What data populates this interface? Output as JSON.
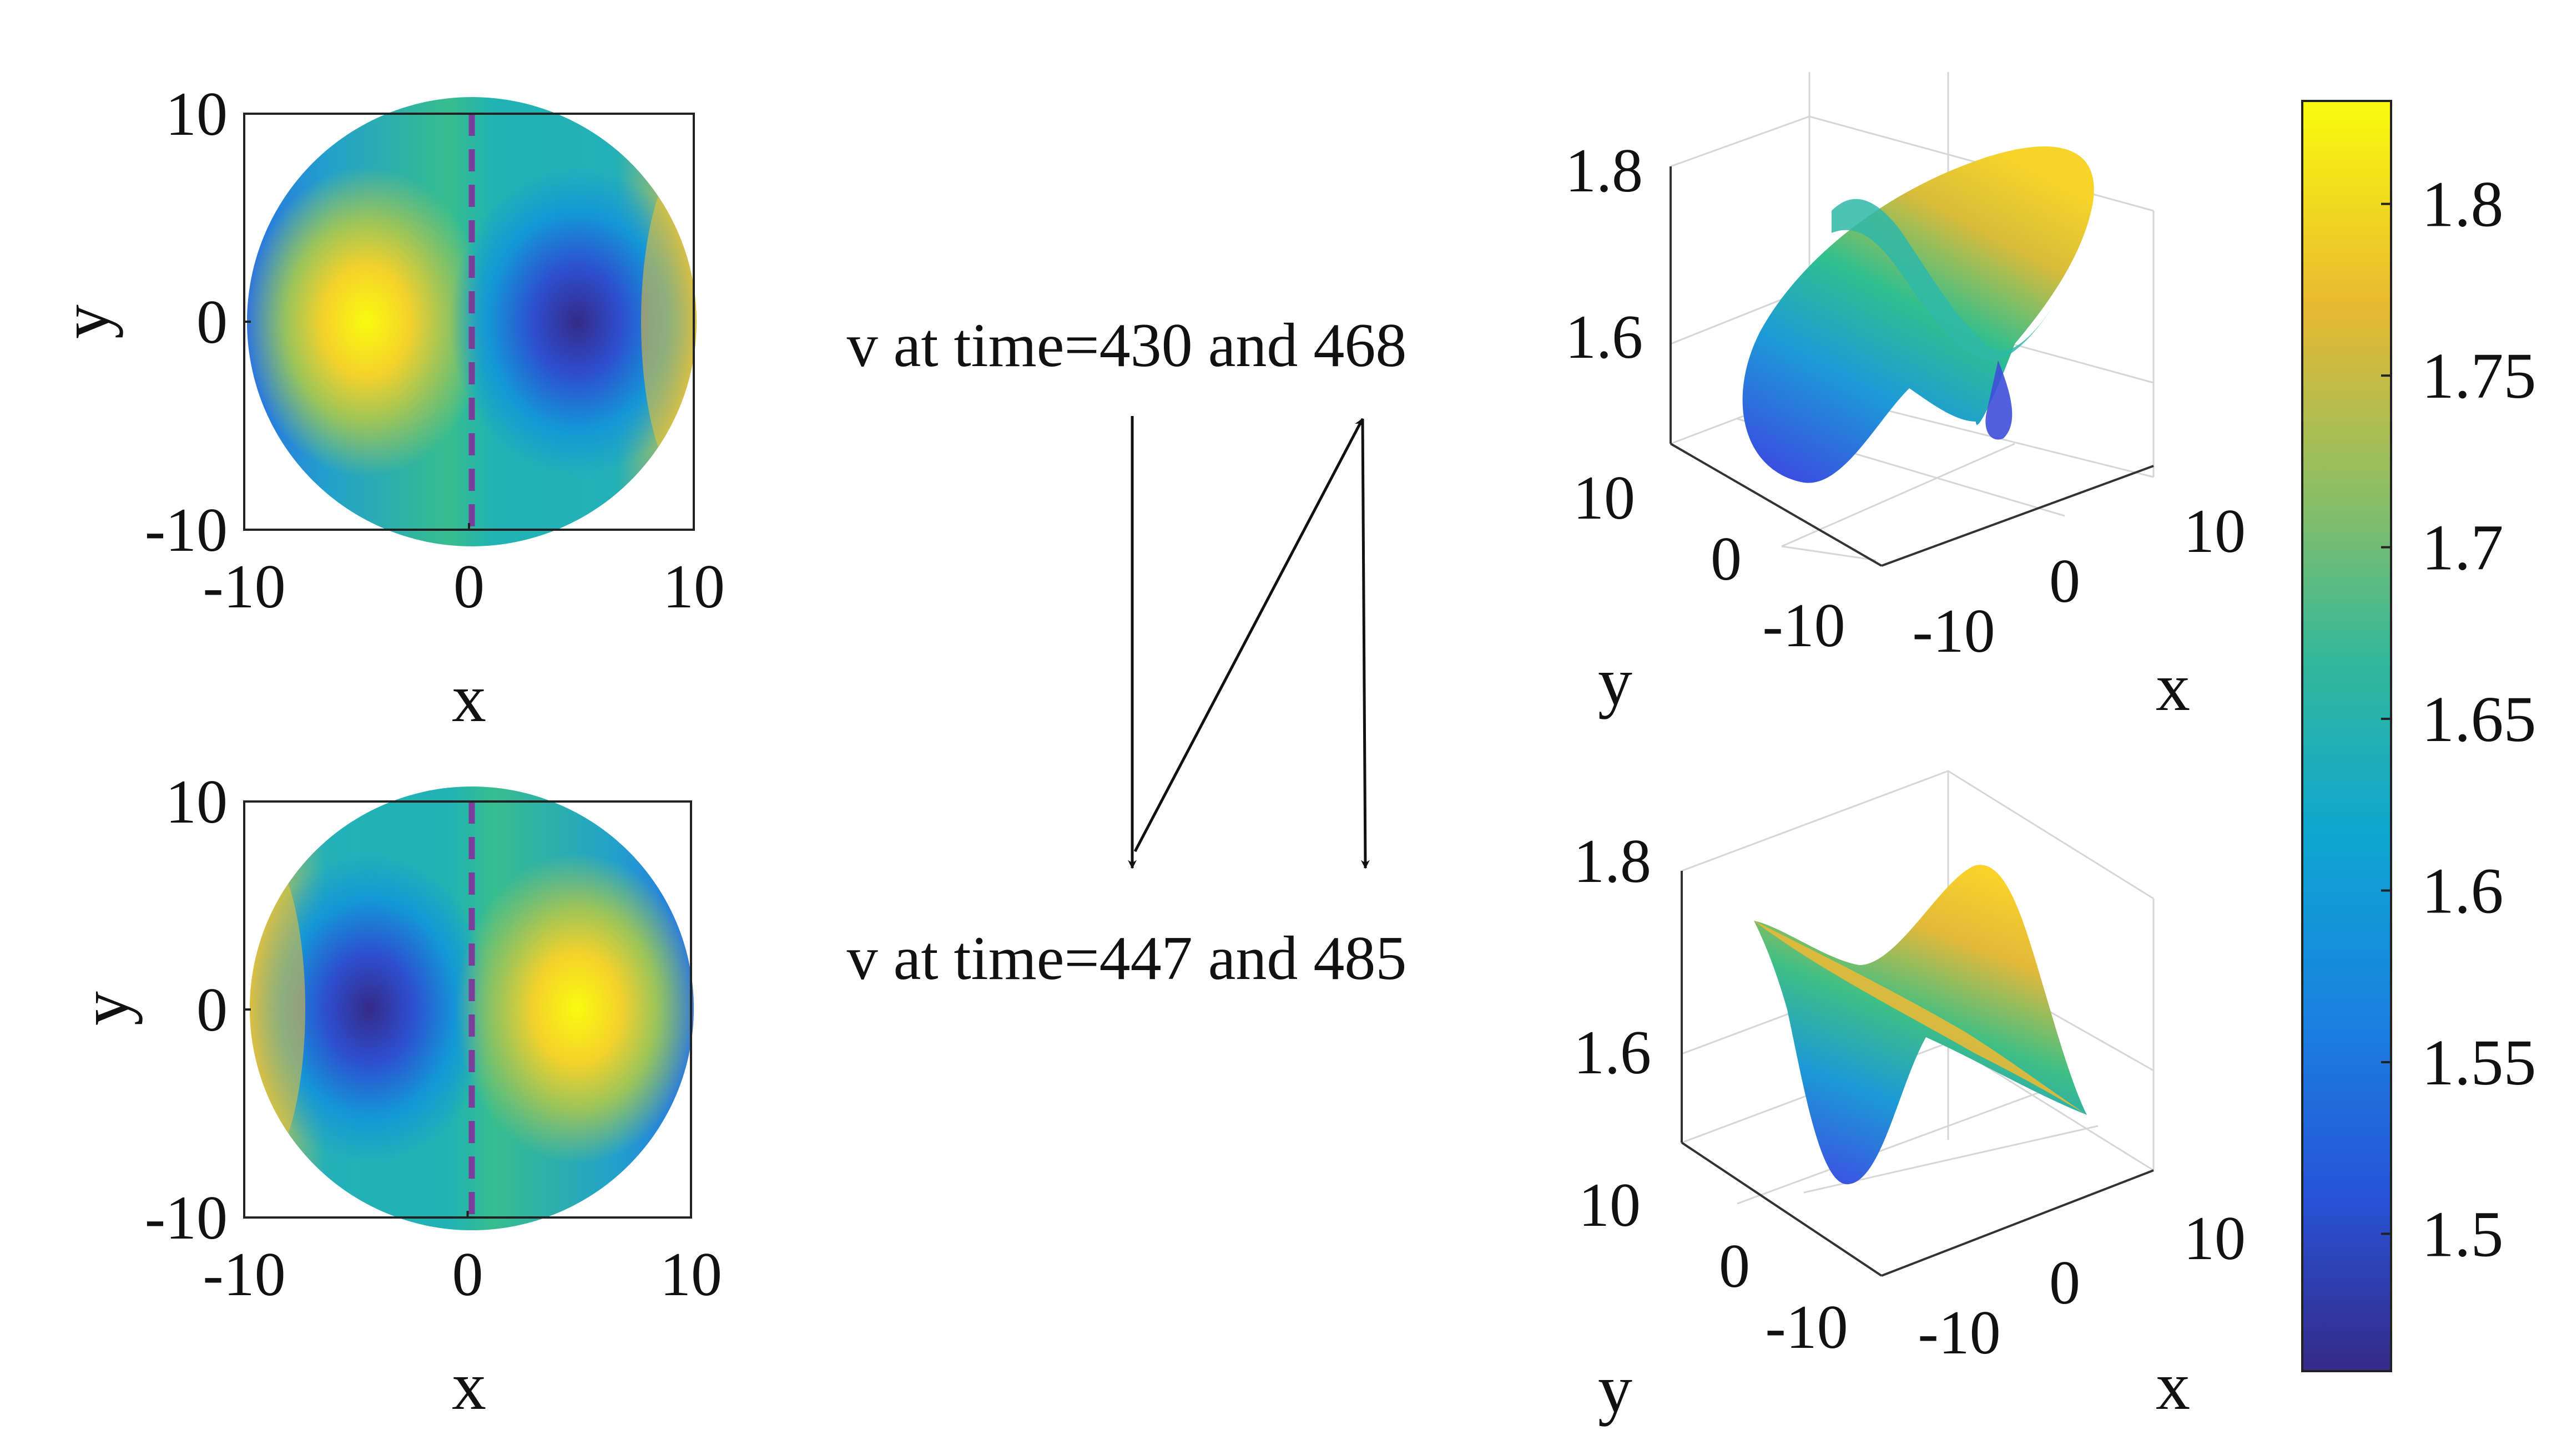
{
  "chart_data": [
    {
      "type": "heatmap",
      "panel": "top-left",
      "domain": "disk",
      "xlabel": "x",
      "ylabel": "y",
      "xlim": [
        -10,
        10
      ],
      "ylim": [
        -10,
        10
      ],
      "x_ticks": [
        "-10",
        "0",
        "10"
      ],
      "y_ticks": [
        "-10",
        "0",
        "10"
      ],
      "dashed_line": {
        "x": 0,
        "color": "#7a3d9a"
      },
      "color_range": [
        1.46,
        1.83
      ],
      "features": [
        {
          "x": -4.8,
          "y": 0,
          "value": 1.82,
          "kind": "max"
        },
        {
          "x": 4.8,
          "y": 0,
          "value": 1.47,
          "kind": "min"
        }
      ],
      "rim_values": {
        "left": 1.52,
        "right": 1.78
      }
    },
    {
      "type": "heatmap",
      "panel": "bottom-left",
      "domain": "disk",
      "xlabel": "x",
      "ylabel": "y",
      "xlim": [
        -10,
        10
      ],
      "ylim": [
        -10,
        10
      ],
      "x_ticks": [
        "-10",
        "0",
        "10"
      ],
      "y_ticks": [
        "-10",
        "0",
        "10"
      ],
      "dashed_line": {
        "x": 0,
        "color": "#7a3d9a"
      },
      "color_range": [
        1.46,
        1.83
      ],
      "features": [
        {
          "x": -4.8,
          "y": 0,
          "value": 1.47,
          "kind": "min"
        },
        {
          "x": 4.8,
          "y": 0,
          "value": 1.82,
          "kind": "max"
        }
      ],
      "rim_values": {
        "left": 1.78,
        "right": 1.52
      }
    },
    {
      "type": "surface",
      "panel": "top-right",
      "xlabel": "x",
      "ylabel": "y",
      "x_ticks": [
        "-10",
        "0",
        "10"
      ],
      "y_ticks": [
        "-10",
        "0",
        "10"
      ],
      "z_ticks": [
        "1.6",
        "1.8"
      ],
      "zlim": [
        1.46,
        1.83
      ]
    },
    {
      "type": "surface",
      "panel": "bottom-right",
      "xlabel": "x",
      "ylabel": "y",
      "x_ticks": [
        "-10",
        "0",
        "10"
      ],
      "y_ticks": [
        "-10",
        "0",
        "10"
      ],
      "z_ticks": [
        "1.6",
        "1.8"
      ],
      "zlim": [
        1.46,
        1.83
      ]
    }
  ],
  "colorbar": {
    "colormap": "parula",
    "range": [
      1.46,
      1.83
    ],
    "ticks": [
      "1.5",
      "1.55",
      "1.6",
      "1.65",
      "1.7",
      "1.75",
      "1.8"
    ]
  },
  "annotations": {
    "top_text": "v at time=430 and 468",
    "bottom_text": "v at time=447 and 485"
  }
}
